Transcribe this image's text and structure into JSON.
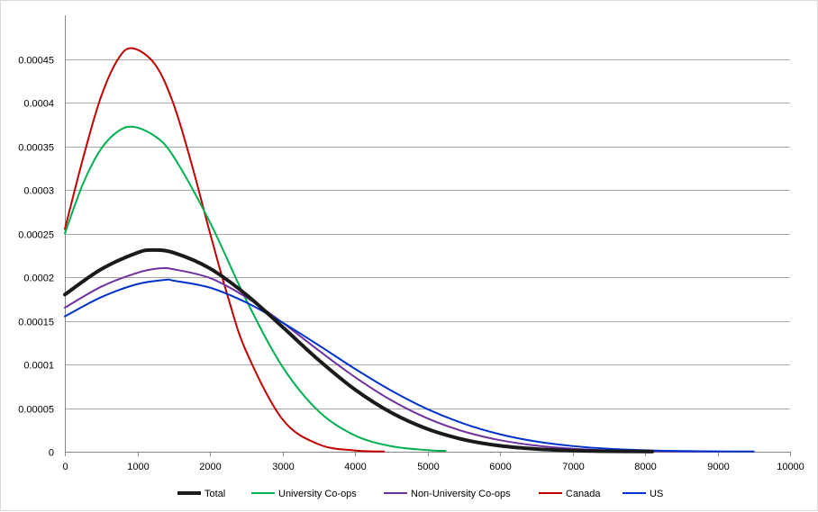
{
  "chart_data": {
    "type": "line",
    "title": "",
    "xlabel": "",
    "ylabel": "",
    "xlim": [
      0,
      10000
    ],
    "ylim": [
      0,
      0.0005
    ],
    "x_ticks": [
      "0",
      "1000",
      "2000",
      "3000",
      "4000",
      "5000",
      "6000",
      "7000",
      "8000",
      "9000",
      "10000"
    ],
    "y_ticks": [
      "0",
      "0.00005",
      "0.0001",
      "0.00015",
      "0.0002",
      "0.00025",
      "0.0003",
      "0.00035",
      "0.0004",
      "0.00045"
    ],
    "grid": "horizontal",
    "legend_position": "bottom",
    "series": [
      {
        "name": "Total",
        "color": "#1a1a1a",
        "x": [
          0,
          500,
          1000,
          1220,
          1500,
          2000,
          2500,
          3000,
          3500,
          4000,
          4500,
          5000,
          5500,
          6000,
          6500,
          7000,
          7500,
          8000,
          8100
        ],
        "y": [
          0.00018,
          0.000209,
          0.000228,
          0.000231,
          0.000228,
          0.00021,
          0.00018,
          0.000143,
          0.000105,
          7.13e-05,
          4.48e-05,
          2.6e-05,
          1.39e-05,
          6.8e-06,
          3.1e-06,
          1.3e-06,
          5e-07,
          2e-07,
          1e-07
        ]
      },
      {
        "name": "University Co-ops",
        "color": "#00b050",
        "x": [
          0,
          250,
          500,
          750,
          960,
          1250,
          1500,
          2000,
          2500,
          3000,
          3500,
          4000,
          4500,
          5000,
          5250
        ],
        "y": [
          0.00025,
          0.000307,
          0.000347,
          0.000368,
          0.000372,
          0.000361,
          0.000338,
          0.000263,
          0.000174,
          9.75e-05,
          4.63e-05,
          1.86e-05,
          6.3e-06,
          1.8e-06,
          9e-07
        ]
      },
      {
        "name": "Non-University Co-ops",
        "color": "#7030a0",
        "x": [
          0,
          500,
          1000,
          1300,
          1500,
          2000,
          2500,
          3000,
          3500,
          4000,
          4500,
          5000,
          5500,
          6000,
          6500,
          7000,
          7500,
          8000,
          8500,
          9000
        ],
        "y": [
          0.000165,
          0.000189,
          0.000205,
          0.00021,
          0.000209,
          0.000199,
          0.000177,
          0.000148,
          0.000116,
          8.55e-05,
          5.9e-05,
          3.82e-05,
          2.32e-05,
          1.32e-05,
          7e-06,
          3.5e-06,
          1.6e-06,
          7e-07,
          3e-07,
          1e-07
        ]
      },
      {
        "name": "Canada",
        "color": "#c00000",
        "x": [
          0,
          250,
          500,
          750,
          950,
          1250,
          1500,
          1750,
          2000,
          2250,
          2500,
          3000,
          3500,
          4000,
          4400
        ],
        "y": [
          0.000255,
          0.000336,
          0.000407,
          0.000452,
          0.000462,
          0.000443,
          0.000398,
          0.000329,
          0.000251,
          0.000177,
          0.000115,
          3.72e-05,
          8.5e-06,
          1.4e-06,
          2e-07
        ]
      },
      {
        "name": "US",
        "color": "#0033cc",
        "x": [
          0,
          500,
          1000,
          1400,
          1500,
          2000,
          2500,
          3000,
          3500,
          4000,
          4500,
          5000,
          5500,
          6000,
          6500,
          7000,
          7500,
          8000,
          8500,
          9000,
          9500
        ],
        "y": [
          0.000155,
          0.000177,
          0.000192,
          0.000197,
          0.000196,
          0.000188,
          0.000171,
          0.000148,
          0.000122,
          9.5e-05,
          7.01e-05,
          4.88e-05,
          3.22e-05,
          2e-05,
          1.17e-05,
          6.5e-06,
          3.4e-06,
          1.7e-06,
          8e-07,
          4e-07,
          2e-07
        ]
      }
    ]
  }
}
